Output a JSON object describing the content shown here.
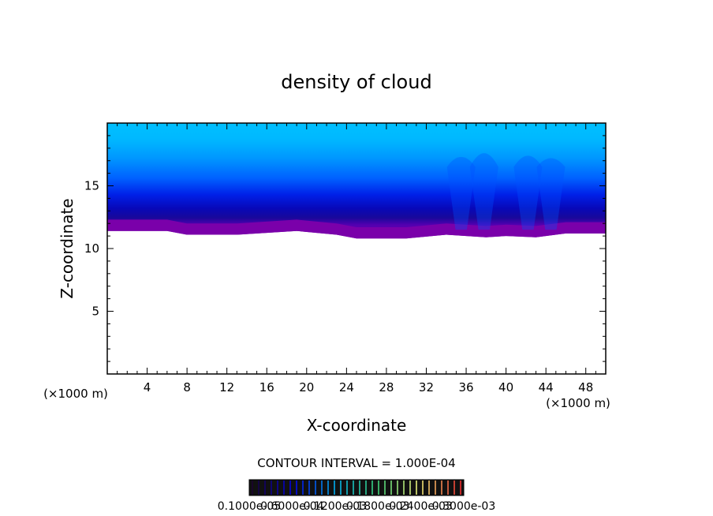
{
  "chart_data": {
    "type": "heatmap",
    "title": "density of cloud",
    "xlabel": "X-coordinate",
    "ylabel": "Z-coordinate",
    "x_unit_left": "(×1000 m)",
    "x_unit_right": "(×1000 m)",
    "xlim": [
      0,
      50
    ],
    "ylim": [
      0,
      20
    ],
    "x_ticks": [
      4,
      8,
      12,
      16,
      20,
      24,
      28,
      32,
      36,
      40,
      44,
      48
    ],
    "x_tick_labels": [
      "4",
      "8",
      "12",
      "16",
      "20",
      "24",
      "28",
      "32",
      "36",
      "40",
      "44",
      "48"
    ],
    "y_ticks": [
      5,
      10,
      15
    ],
    "y_tick_labels": [
      "5",
      "10",
      "15"
    ],
    "cloud_top": 20,
    "cloud_base": [
      {
        "x": 0,
        "z": 11.4
      },
      {
        "x": 6,
        "z": 11.4
      },
      {
        "x": 8,
        "z": 11.1
      },
      {
        "x": 13,
        "z": 11.1
      },
      {
        "x": 19,
        "z": 11.4
      },
      {
        "x": 23,
        "z": 11.1
      },
      {
        "x": 25,
        "z": 10.8
      },
      {
        "x": 30,
        "z": 10.8
      },
      {
        "x": 34,
        "z": 11.1
      },
      {
        "x": 38,
        "z": 10.9
      },
      {
        "x": 40,
        "z": 11.0
      },
      {
        "x": 43,
        "z": 10.9
      },
      {
        "x": 46,
        "z": 11.2
      },
      {
        "x": 50,
        "z": 11.2
      }
    ],
    "contour_interval_label": "CONTOUR INTERVAL = 1.000E-04",
    "colorbar_tick_labels": [
      "0.1000e-05",
      "0.6000e-04",
      "0.1200e-03",
      "0.1800e-03",
      "0.2400e-03",
      "0.3000e-03"
    ],
    "colormap": [
      "#1a0033",
      "#0000ff",
      "#00bfff",
      "#40e080",
      "#ffff80",
      "#ff3030"
    ],
    "cloud_colors": [
      "#7a00aa",
      "#1000c0",
      "#0010e0",
      "#0040ff",
      "#0080ff",
      "#00b0ff",
      "#00c0ff"
    ]
  }
}
